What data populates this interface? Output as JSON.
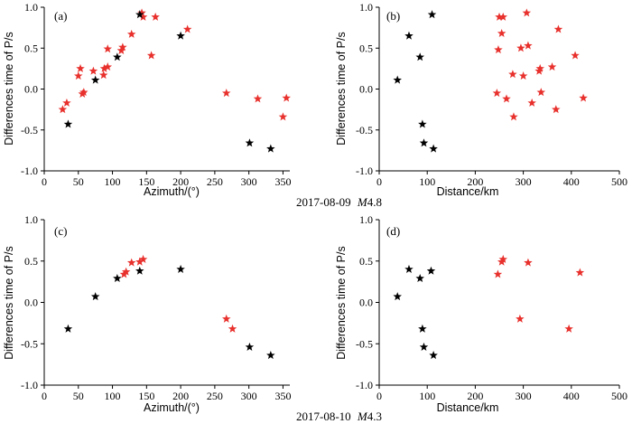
{
  "figure": {
    "caption_top": {
      "date": "2017-08-09",
      "magnitude_label": "M",
      "magnitude_value": "4.8"
    },
    "caption_bottom": {
      "date": "2017-08-10",
      "magnitude_label": "M",
      "magnitude_value": "4.3"
    },
    "colors": {
      "black_marker": "#000000",
      "red_marker": "#e8302c"
    }
  },
  "chart_data": [
    {
      "panel": "(a)",
      "type": "scatter",
      "xlabel": "Azimuth/(°)",
      "ylabel": "Differences time of P/s",
      "xlim": [
        0,
        360
      ],
      "ylim": [
        -1.0,
        1.0
      ],
      "xticks": [
        0,
        50,
        100,
        150,
        200,
        250,
        300,
        350
      ],
      "yticks": [
        -1.0,
        -0.5,
        0.0,
        0.5,
        1.0
      ],
      "series": [
        {
          "name": "black",
          "color": "#000000",
          "points": [
            [
              35,
              -0.43
            ],
            [
              75,
              0.11
            ],
            [
              107,
              0.39
            ],
            [
              140,
              0.91
            ],
            [
              200,
              0.65
            ],
            [
              301,
              -0.66
            ],
            [
              332,
              -0.73
            ]
          ]
        },
        {
          "name": "red",
          "color": "#e8302c",
          "points": [
            [
              27,
              -0.25
            ],
            [
              33,
              -0.17
            ],
            [
              50,
              0.16
            ],
            [
              53,
              0.25
            ],
            [
              58,
              -0.04
            ],
            [
              56,
              -0.06
            ],
            [
              72,
              0.22
            ],
            [
              87,
              0.17
            ],
            [
              88,
              0.25
            ],
            [
              93,
              0.27
            ],
            [
              93,
              0.49
            ],
            [
              113,
              0.47
            ],
            [
              115,
              0.51
            ],
            [
              128,
              0.67
            ],
            [
              143,
              0.93
            ],
            [
              145,
              0.88
            ],
            [
              157,
              0.41
            ],
            [
              163,
              0.88
            ],
            [
              210,
              0.73
            ],
            [
              267,
              -0.05
            ],
            [
              313,
              -0.12
            ],
            [
              350,
              -0.34
            ],
            [
              355,
              -0.11
            ]
          ]
        }
      ]
    },
    {
      "panel": "(b)",
      "type": "scatter",
      "xlabel": "Distance/km",
      "ylabel": "Differences time of P/s",
      "xlim": [
        0,
        500
      ],
      "ylim": [
        -1.0,
        1.0
      ],
      "xticks": [
        0,
        100,
        200,
        300,
        400,
        500
      ],
      "yticks": [
        -1.0,
        -0.5,
        0.0,
        0.5,
        1.0
      ],
      "series": [
        {
          "name": "black",
          "color": "#000000",
          "points": [
            [
              38,
              0.11
            ],
            [
              62,
              0.65
            ],
            [
              85,
              0.39
            ],
            [
              90,
              -0.43
            ],
            [
              93,
              -0.66
            ],
            [
              110,
              0.91
            ],
            [
              113,
              -0.73
            ]
          ]
        },
        {
          "name": "red",
          "color": "#e8302c",
          "points": [
            [
              245,
              -0.05
            ],
            [
              248,
              0.48
            ],
            [
              250,
              0.88
            ],
            [
              255,
              0.68
            ],
            [
              258,
              0.88
            ],
            [
              265,
              -0.12
            ],
            [
              278,
              0.18
            ],
            [
              280,
              -0.34
            ],
            [
              295,
              0.5
            ],
            [
              300,
              0.16
            ],
            [
              307,
              0.93
            ],
            [
              310,
              0.53
            ],
            [
              318,
              -0.17
            ],
            [
              333,
              0.22
            ],
            [
              335,
              0.25
            ],
            [
              337,
              -0.04
            ],
            [
              360,
              0.27
            ],
            [
              368,
              -0.25
            ],
            [
              373,
              0.73
            ],
            [
              408,
              0.41
            ],
            [
              425,
              -0.11
            ]
          ]
        }
      ]
    },
    {
      "panel": "(c)",
      "type": "scatter",
      "xlabel": "Azimuth/(°)",
      "ylabel": "Differences time of P/s",
      "xlim": [
        0,
        360
      ],
      "ylim": [
        -1.0,
        1.0
      ],
      "xticks": [
        0,
        50,
        100,
        150,
        200,
        250,
        300,
        350
      ],
      "yticks": [
        -1.0,
        -0.5,
        0.0,
        0.5,
        1.0
      ],
      "series": [
        {
          "name": "black",
          "color": "#000000",
          "points": [
            [
              35,
              -0.32
            ],
            [
              75,
              0.07
            ],
            [
              107,
              0.29
            ],
            [
              140,
              0.38
            ],
            [
              200,
              0.4
            ],
            [
              301,
              -0.54
            ],
            [
              332,
              -0.64
            ]
          ]
        },
        {
          "name": "red",
          "color": "#e8302c",
          "points": [
            [
              117,
              0.34
            ],
            [
              120,
              0.37
            ],
            [
              128,
              0.48
            ],
            [
              140,
              0.49
            ],
            [
              145,
              0.52
            ],
            [
              267,
              -0.2
            ],
            [
              276,
              -0.32
            ]
          ]
        }
      ]
    },
    {
      "panel": "(d)",
      "type": "scatter",
      "xlabel": "Distance/km",
      "ylabel": "Differences time of P/s",
      "xlim": [
        0,
        500
      ],
      "ylim": [
        -1.0,
        1.0
      ],
      "xticks": [
        0,
        100,
        200,
        300,
        400,
        500
      ],
      "yticks": [
        -1.0,
        -0.5,
        0.0,
        0.5,
        1.0
      ],
      "series": [
        {
          "name": "black",
          "color": "#000000",
          "points": [
            [
              38,
              0.07
            ],
            [
              62,
              0.4
            ],
            [
              85,
              0.29
            ],
            [
              90,
              -0.32
            ],
            [
              93,
              -0.54
            ],
            [
              108,
              0.38
            ],
            [
              113,
              -0.64
            ]
          ]
        },
        {
          "name": "red",
          "color": "#e8302c",
          "points": [
            [
              247,
              0.34
            ],
            [
              255,
              0.49
            ],
            [
              258,
              0.52
            ],
            [
              293,
              -0.2
            ],
            [
              310,
              0.48
            ],
            [
              395,
              -0.32
            ],
            [
              418,
              0.36
            ]
          ]
        }
      ]
    }
  ]
}
